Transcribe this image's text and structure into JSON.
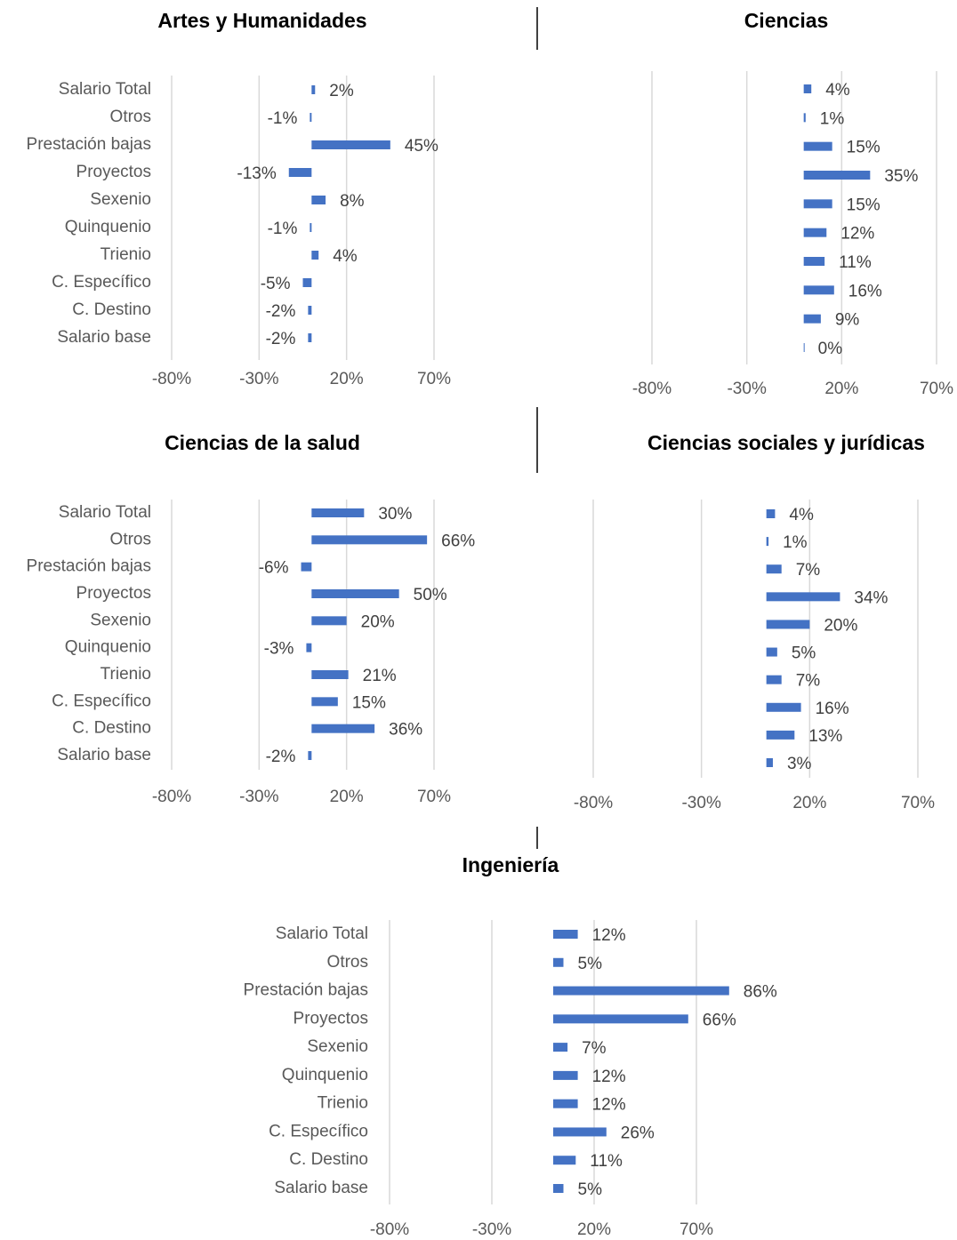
{
  "chart_data": [
    {
      "type": "bar",
      "orientation": "horizontal",
      "title": "Artes y Humanidades",
      "categories": [
        "Salario Total",
        "Otros",
        "Prestación bajas",
        "Proyectos",
        "Sexenio",
        "Quinquenio",
        "Trienio",
        "C. Específico",
        "C. Destino",
        "Salario base"
      ],
      "values": [
        2,
        -1,
        45,
        -13,
        8,
        -1,
        4,
        -5,
        -2,
        -2
      ],
      "value_labels": [
        "2%",
        "-1%",
        "45%",
        "-13%",
        "8%",
        "-1%",
        "4%",
        "-5%",
        "-2%",
        "-2%"
      ],
      "color": "#4472c4",
      "xlim": [
        -80,
        70
      ],
      "xticks": [
        {
          "value": -80,
          "label": "-80%"
        },
        {
          "value": -30,
          "label": "-30%"
        },
        {
          "value": 20,
          "label": "20%"
        },
        {
          "value": 70,
          "label": "70%"
        }
      ],
      "grid": true
    },
    {
      "type": "bar",
      "orientation": "horizontal",
      "title": "Ciencias",
      "values": [
        4,
        1,
        15,
        35,
        15,
        12,
        11,
        16,
        9,
        0
      ],
      "value_labels": [
        "4%",
        "1%",
        "15%",
        "35%",
        "15%",
        "12%",
        "11%",
        "16%",
        "9%",
        "0%"
      ],
      "color": "#4472c4",
      "xlim": [
        -80,
        70
      ],
      "xticks": [
        {
          "value": -80,
          "label": "-80%"
        },
        {
          "value": -30,
          "label": "-30%"
        },
        {
          "value": 20,
          "label": "20%"
        },
        {
          "value": 70,
          "label": "70%"
        }
      ],
      "grid": true
    },
    {
      "type": "bar",
      "orientation": "horizontal",
      "title": "Ciencias de la salud",
      "categories": [
        "Salario Total",
        "Otros",
        "Prestación bajas",
        "Proyectos",
        "Sexenio",
        "Quinquenio",
        "Trienio",
        "C. Específico",
        "C. Destino",
        "Salario base"
      ],
      "values": [
        30,
        66,
        -6,
        50,
        20,
        -3,
        21,
        15,
        36,
        -2
      ],
      "value_labels": [
        "30%",
        "66%",
        "-6%",
        "50%",
        "20%",
        "-3%",
        "21%",
        "15%",
        "36%",
        "-2%"
      ],
      "color": "#4472c4",
      "xlim": [
        -80,
        70
      ],
      "xticks": [
        {
          "value": -80,
          "label": "-80%"
        },
        {
          "value": -30,
          "label": "-30%"
        },
        {
          "value": 20,
          "label": "20%"
        },
        {
          "value": 70,
          "label": "70%"
        }
      ],
      "grid": true
    },
    {
      "type": "bar",
      "orientation": "horizontal",
      "title": "Ciencias sociales y jurídicas",
      "values": [
        4,
        1,
        7,
        34,
        20,
        5,
        7,
        16,
        13,
        3
      ],
      "value_labels": [
        "4%",
        "1%",
        "7%",
        "34%",
        "20%",
        "5%",
        "7%",
        "16%",
        "13%",
        "3%"
      ],
      "color": "#4472c4",
      "xlim": [
        -80,
        70
      ],
      "xticks": [
        {
          "value": -80,
          "label": "-80%"
        },
        {
          "value": -30,
          "label": "-30%"
        },
        {
          "value": 20,
          "label": "20%"
        },
        {
          "value": 70,
          "label": "70%"
        }
      ],
      "grid": true
    },
    {
      "type": "bar",
      "orientation": "horizontal",
      "title": "Ingeniería",
      "categories": [
        "Salario Total",
        "Otros",
        "Prestación bajas",
        "Proyectos",
        "Sexenio",
        "Quinquenio",
        "Trienio",
        "C. Específico",
        "C. Destino",
        "Salario base"
      ],
      "values": [
        12,
        5,
        86,
        66,
        7,
        12,
        12,
        26,
        11,
        5
      ],
      "value_labels": [
        "12%",
        "5%",
        "86%",
        "66%",
        "7%",
        "12%",
        "12%",
        "26%",
        "11%",
        "5%"
      ],
      "color": "#4472c4",
      "xlim": [
        -80,
        100
      ],
      "xticks": [
        {
          "value": -80,
          "label": "-80%"
        },
        {
          "value": -30,
          "label": "-30%"
        },
        {
          "value": 20,
          "label": "20%"
        },
        {
          "value": 70,
          "label": "70%"
        }
      ],
      "grid": true
    }
  ]
}
